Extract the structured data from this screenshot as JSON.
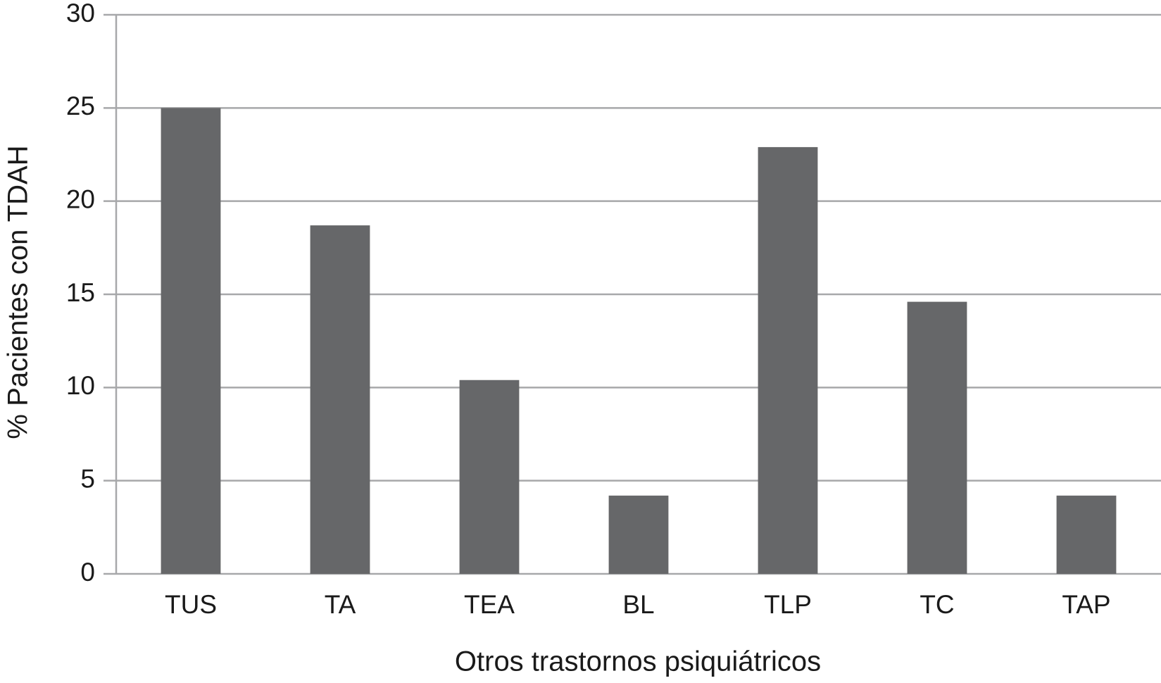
{
  "chart_data": {
    "type": "bar",
    "x_label": "Otros trastornos psiquiátricos",
    "y_label": "% Pacientes con TDAH",
    "categories": [
      "TUS",
      "TA",
      "TEA",
      "BL",
      "TLP",
      "TC",
      "TAP"
    ],
    "values": [
      25,
      18.7,
      10.4,
      4.2,
      22.9,
      14.6,
      4.2
    ],
    "color": "#666769",
    "ylim": [
      0,
      30
    ],
    "yticks": [
      0,
      5,
      10,
      15,
      20,
      25,
      30
    ],
    "grid": true
  }
}
